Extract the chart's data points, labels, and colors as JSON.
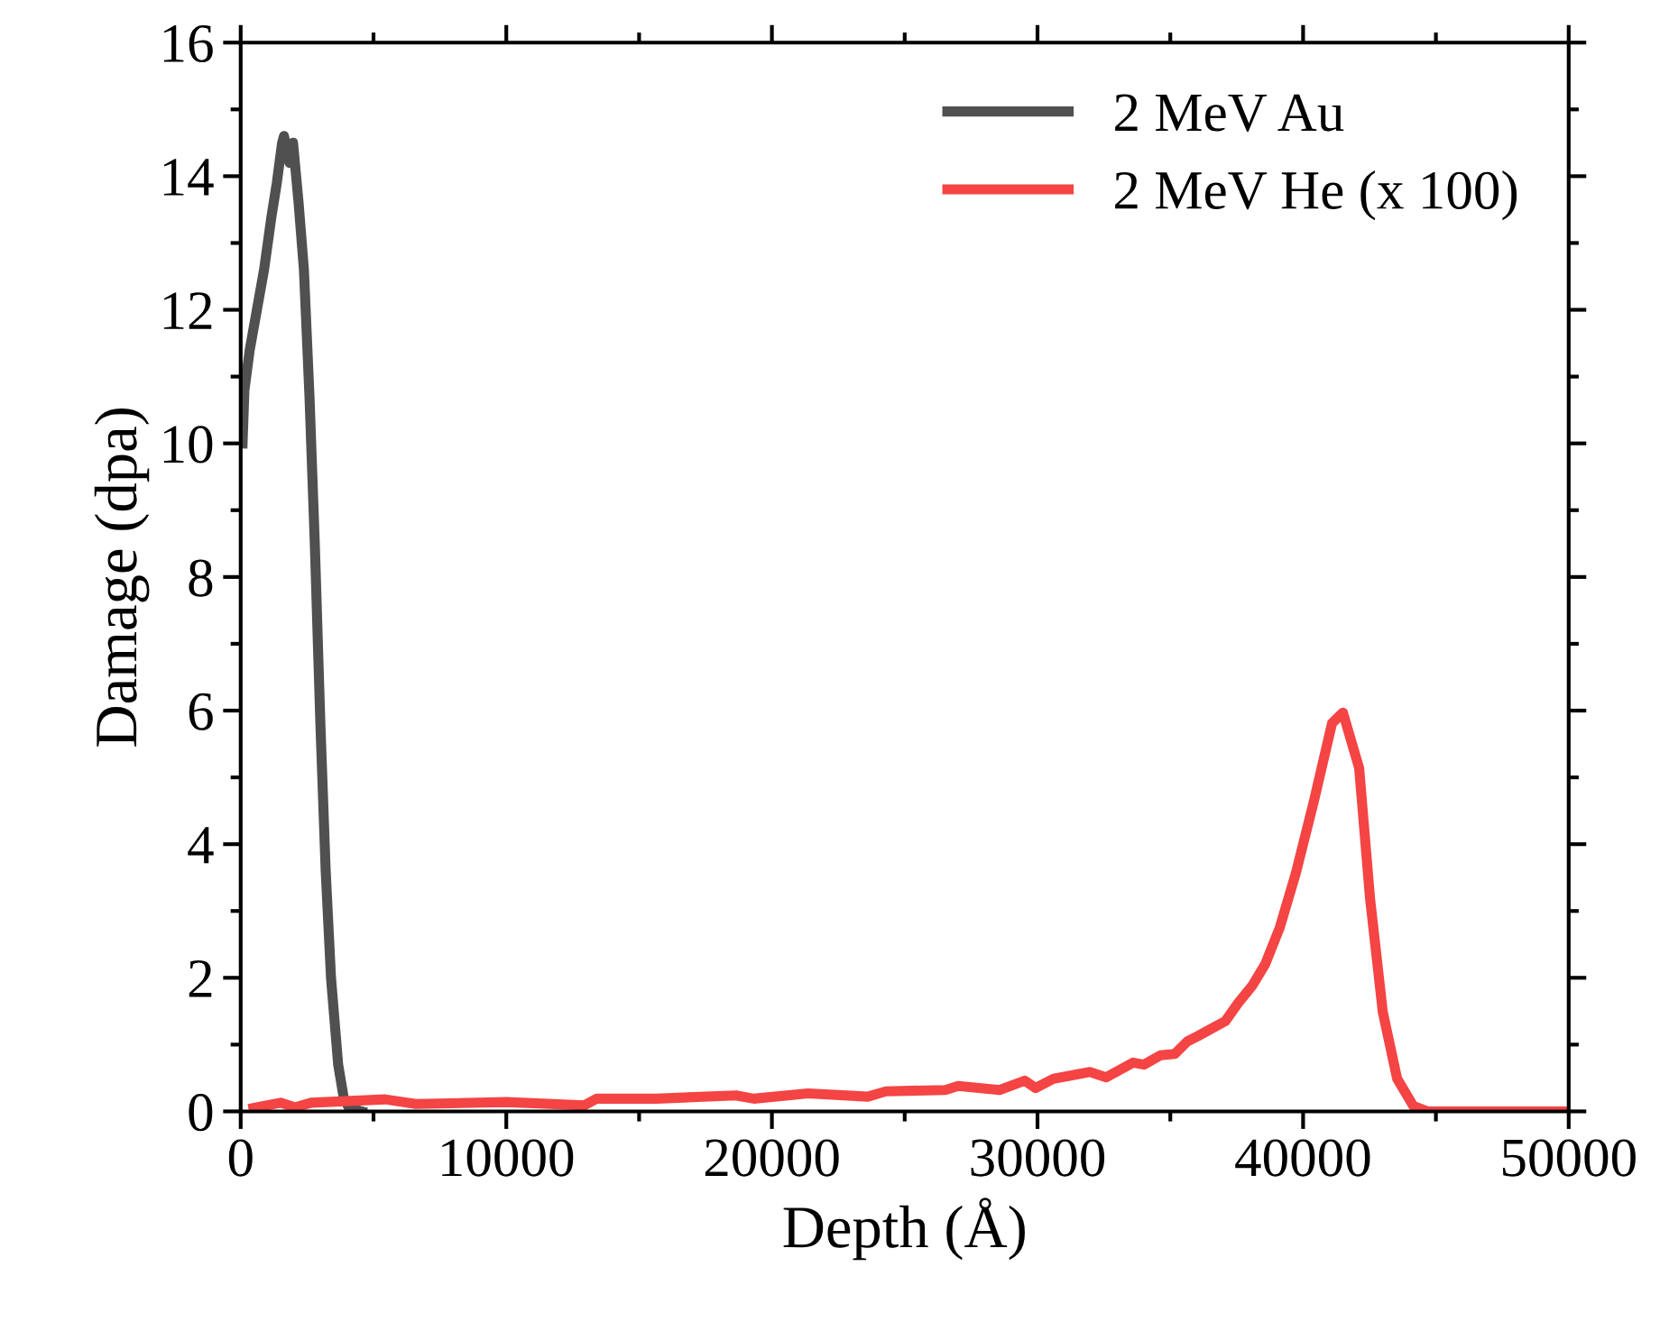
{
  "chart_data": {
    "type": "line",
    "xlabel": "Depth (Å)",
    "ylabel": "Damage (dpa)",
    "xlim": [
      0,
      50000
    ],
    "ylim": [
      0,
      16
    ],
    "xticks": [
      0,
      10000,
      20000,
      30000,
      40000,
      50000
    ],
    "yticks": [
      0,
      2,
      4,
      6,
      8,
      10,
      12,
      14,
      16
    ],
    "grid": false,
    "legend": "top right",
    "line_style": "solid",
    "marker": "none",
    "series": [
      {
        "name": "2 MeV Au",
        "color": "#505050",
        "x": [
          70,
          140,
          340,
          610,
          880,
          1160,
          1360,
          1560,
          1630,
          1840,
          1970,
          2180,
          2380,
          2590,
          2790,
          3000,
          3200,
          3400,
          3670,
          3880,
          4080,
          4560
        ],
        "values": [
          10.0,
          10.8,
          11.4,
          12.0,
          12.6,
          13.4,
          13.9,
          14.5,
          14.6,
          14.2,
          14.5,
          13.6,
          12.6,
          10.7,
          8.5,
          5.8,
          3.6,
          2.0,
          0.7,
          0.2,
          0.05,
          0
        ]
      },
      {
        "name": "2 MeV He (x 100)",
        "color": "#f44444",
        "x": [
          480,
          1500,
          2040,
          2650,
          5440,
          6600,
          10000,
          12930,
          13400,
          15650,
          18640,
          19320,
          21360,
          23610,
          24290,
          26530,
          27010,
          28570,
          29520,
          29930,
          30610,
          31970,
          32590,
          33600,
          34010,
          34630,
          35170,
          35650,
          36050,
          37070,
          37550,
          38100,
          38570,
          39120,
          39730,
          40410,
          41090,
          41500,
          42110,
          42520,
          43000,
          43540,
          44150,
          44690,
          50000
        ],
        "values": [
          0.05,
          0.13,
          0.06,
          0.13,
          0.18,
          0.11,
          0.14,
          0.09,
          0.19,
          0.19,
          0.24,
          0.19,
          0.27,
          0.22,
          0.3,
          0.32,
          0.38,
          0.32,
          0.46,
          0.35,
          0.49,
          0.59,
          0.51,
          0.73,
          0.7,
          0.84,
          0.86,
          1.05,
          1.13,
          1.35,
          1.62,
          1.89,
          2.2,
          2.75,
          3.57,
          4.65,
          5.81,
          5.97,
          5.14,
          3.19,
          1.49,
          0.49,
          0.08,
          0,
          0
        ]
      }
    ]
  }
}
